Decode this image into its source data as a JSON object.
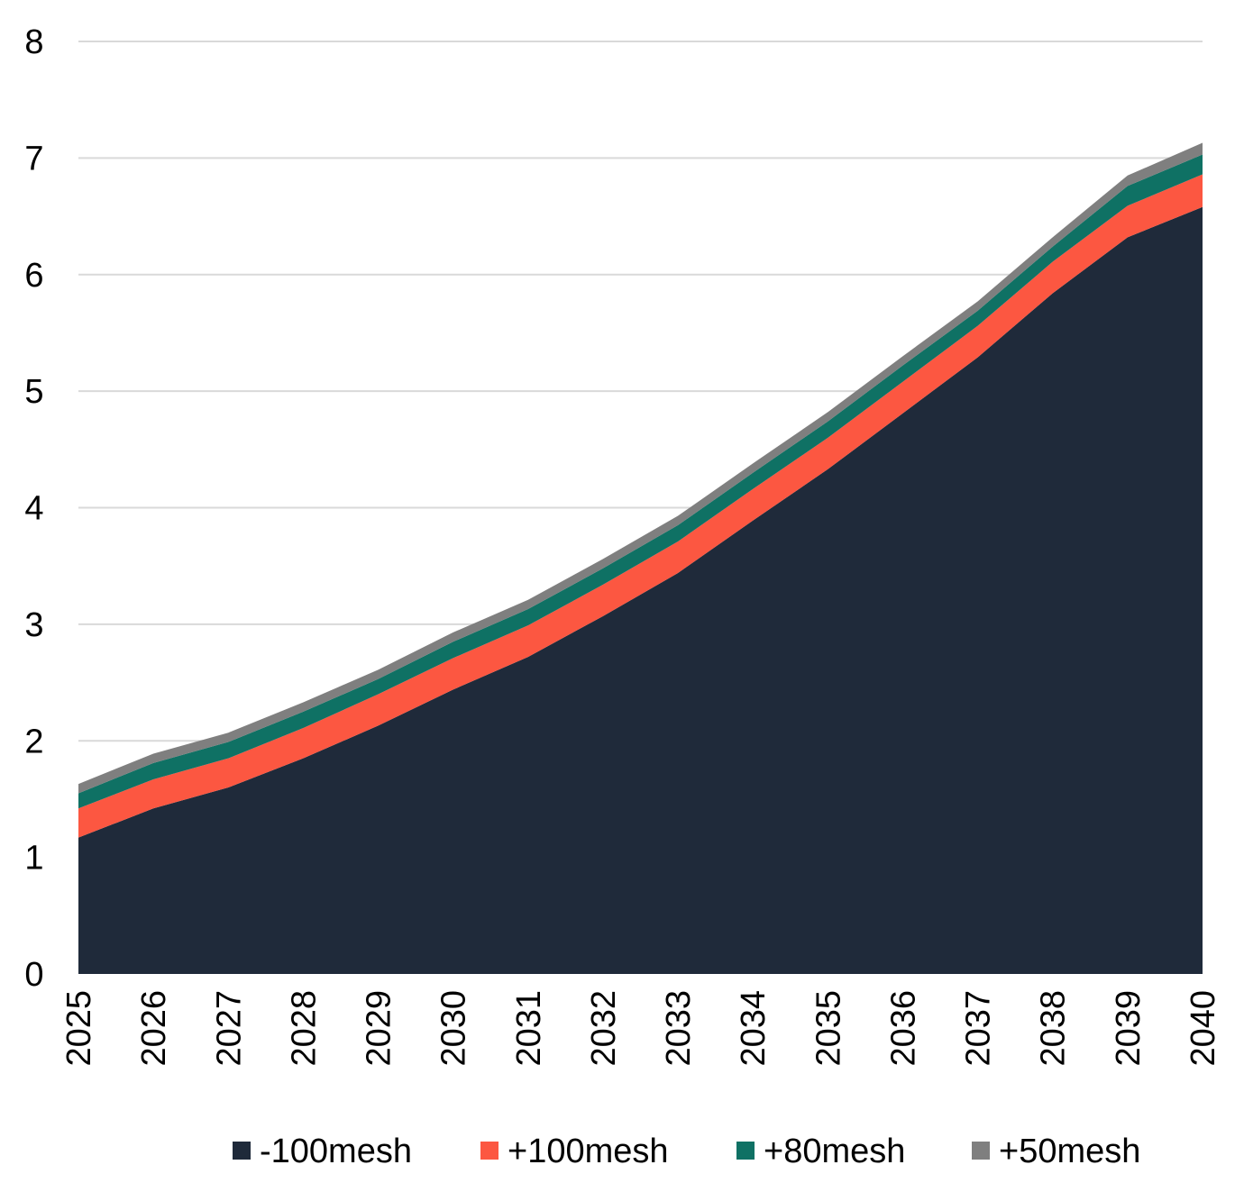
{
  "chart_data": {
    "type": "area",
    "stacked": true,
    "x": [
      "2025",
      "2026",
      "2027",
      "2028",
      "2029",
      "2030",
      "2031",
      "2032",
      "2033",
      "2034",
      "2035",
      "2036",
      "2037",
      "2038",
      "2039",
      "2040"
    ],
    "series": [
      {
        "name": "-100mesh",
        "color": "#1f2a3a",
        "values": [
          1.17,
          1.42,
          1.6,
          1.85,
          2.13,
          2.44,
          2.72,
          3.07,
          3.44,
          3.89,
          4.33,
          4.81,
          5.29,
          5.84,
          6.32,
          6.58
        ]
      },
      {
        "name": "+100mesh",
        "color": "#fc5741",
        "values": [
          0.25,
          0.25,
          0.25,
          0.26,
          0.27,
          0.27,
          0.27,
          0.27,
          0.27,
          0.27,
          0.27,
          0.27,
          0.27,
          0.27,
          0.27,
          0.28
        ]
      },
      {
        "name": "+80mesh",
        "color": "#0f7164",
        "values": [
          0.13,
          0.14,
          0.14,
          0.14,
          0.13,
          0.14,
          0.14,
          0.14,
          0.14,
          0.14,
          0.14,
          0.14,
          0.13,
          0.13,
          0.17,
          0.17
        ]
      },
      {
        "name": "+50mesh",
        "color": "#7f7f7f",
        "values": [
          0.08,
          0.08,
          0.08,
          0.08,
          0.08,
          0.08,
          0.08,
          0.08,
          0.08,
          0.08,
          0.08,
          0.08,
          0.08,
          0.08,
          0.09,
          0.1
        ]
      }
    ],
    "ylim": [
      0,
      8
    ],
    "yticks": [
      0,
      1,
      2,
      3,
      4,
      5,
      6,
      7,
      8
    ],
    "grid": true,
    "legend_position": "bottom",
    "title": "",
    "xlabel": "",
    "ylabel": ""
  }
}
